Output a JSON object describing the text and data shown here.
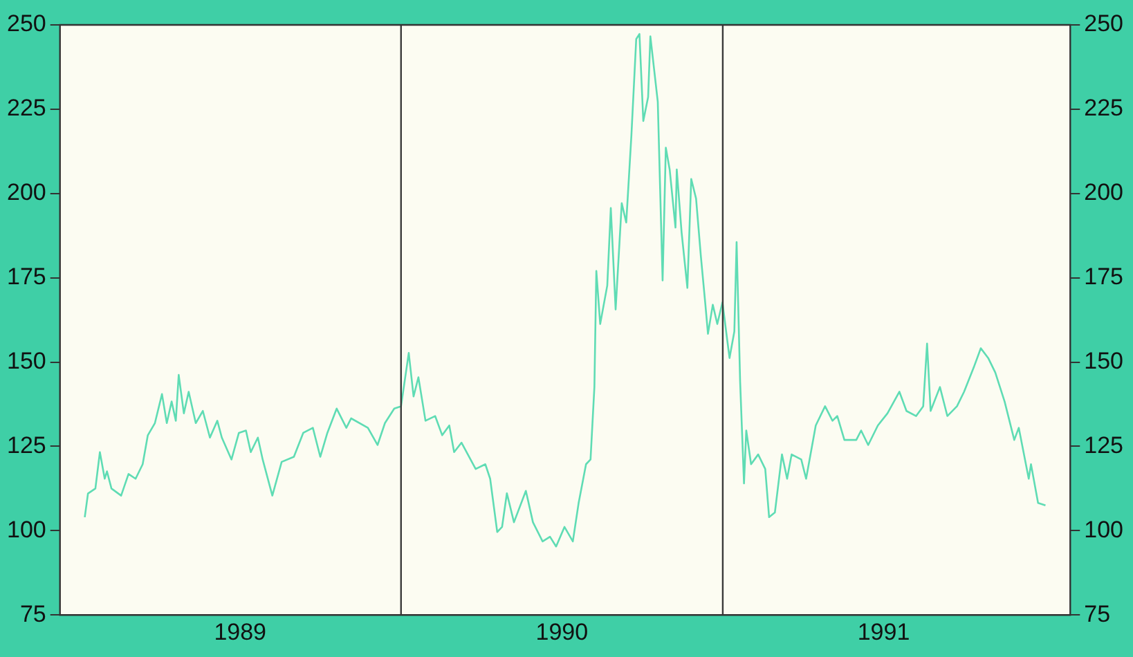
{
  "chart_data": {
    "type": "line",
    "x": [
      1989.017,
      1989.027,
      1989.05,
      1989.064,
      1989.079,
      1989.086,
      1989.1,
      1989.13,
      1989.153,
      1989.175,
      1989.197,
      1989.213,
      1989.235,
      1989.257,
      1989.272,
      1989.287,
      1989.3,
      1989.309,
      1989.325,
      1989.34,
      1989.362,
      1989.384,
      1989.406,
      1989.429,
      1989.443,
      1989.473,
      1989.496,
      1989.518,
      1989.533,
      1989.555,
      1989.57,
      1989.6,
      1989.629,
      1989.667,
      1989.696,
      1989.726,
      1989.749,
      1989.771,
      1989.8,
      1989.83,
      1989.845,
      1989.897,
      1989.927,
      1989.95,
      1989.979,
      1990.0,
      1990.024,
      1990.039,
      1990.054,
      1990.076,
      1990.106,
      1990.128,
      1990.15,
      1990.165,
      1990.188,
      1990.232,
      1990.262,
      1990.277,
      1990.299,
      1990.314,
      1990.329,
      1990.351,
      1990.388,
      1990.41,
      1990.44,
      1990.463,
      1990.482,
      1990.508,
      1990.534,
      1990.552,
      1990.575,
      1990.589,
      1990.601,
      1990.607,
      1990.619,
      1990.641,
      1990.652,
      1990.667,
      1990.686,
      1990.7,
      1990.716,
      1990.731,
      1990.741,
      1990.753,
      1990.768,
      1990.775,
      1990.798,
      1990.813,
      1990.823,
      1990.835,
      1990.853,
      1990.857,
      1990.872,
      1990.89,
      1990.902,
      1990.917,
      1990.932,
      1990.946,
      1990.954,
      1990.969,
      1990.983,
      1990.999,
      1991.021,
      1991.036,
      1991.043,
      1991.054,
      1991.066,
      1991.073,
      1991.088,
      1991.11,
      1991.132,
      1991.144,
      1991.162,
      1991.184,
      1991.2,
      1991.214,
      1991.244,
      1991.259,
      1991.289,
      1991.318,
      1991.341,
      1991.356,
      1991.378,
      1991.415,
      1991.43,
      1991.452,
      1991.482,
      1991.512,
      1991.549,
      1991.571,
      1991.601,
      1991.623,
      1991.635,
      1991.646,
      1991.675,
      1991.698,
      1991.728,
      1991.75,
      1991.78,
      1991.802,
      1991.825,
      1991.847,
      1991.876,
      1991.906,
      1991.92,
      1991.951,
      1991.958,
      1991.98,
      1992.003
    ],
    "series": [
      {
        "color": "#5fdcb4",
        "values": [
          104,
          111,
          112.5,
          123.3,
          115.4,
          117.6,
          112.5,
          110.4,
          116.8,
          115.4,
          119.7,
          128.3,
          131.9,
          140.5,
          131.9,
          138.3,
          132.6,
          146.2,
          134.8,
          141.2,
          131.9,
          135.5,
          127.6,
          132.6,
          127.6,
          121.1,
          129,
          129.7,
          123.3,
          127.6,
          121.1,
          110.4,
          120.4,
          121.9,
          129,
          130.5,
          121.9,
          129,
          136.2,
          130.5,
          133.3,
          130.5,
          125.4,
          131.9,
          136.2,
          136.9,
          152.7,
          139.8,
          145.5,
          132.6,
          134,
          128.3,
          131.2,
          123.3,
          126.1,
          118.3,
          119.7,
          115.4,
          99.6,
          101.1,
          111.1,
          102.5,
          111.8,
          102.5,
          96.8,
          98.2,
          95.3,
          101.1,
          96.8,
          108.2,
          119.7,
          121.1,
          142.6,
          177,
          161.3,
          172.7,
          195.7,
          165.6,
          197.1,
          191.4,
          217.2,
          245.8,
          247.3,
          221.5,
          228.6,
          246.6,
          227.2,
          174.2,
          213.6,
          207.1,
          189.9,
          207.1,
          188.5,
          172,
          204.3,
          198.5,
          181.3,
          167,
          158.4,
          167,
          161.3,
          167.7,
          151.2,
          159.1,
          185.6,
          144.1,
          114,
          129.7,
          119.7,
          122.6,
          118.3,
          104,
          105.4,
          122.6,
          115.4,
          122.6,
          121.1,
          115.4,
          131.2,
          136.9,
          132.6,
          134,
          126.9,
          126.9,
          129.7,
          125.4,
          131.2,
          134.8,
          141.2,
          135.5,
          134,
          136.9,
          155.5,
          135.5,
          142.6,
          134,
          136.9,
          141.2,
          148.4,
          154.1,
          151.2,
          146.9,
          138.3,
          126.9,
          130.5,
          115.4,
          119.7,
          108.2,
          107.5
        ]
      }
    ],
    "xlim": [
      1988.94,
      1992.08
    ],
    "xticks": [
      {
        "value": 1989.5,
        "label": "1989"
      },
      {
        "value": 1990.5,
        "label": "1990"
      },
      {
        "value": 1991.5,
        "label": "1991"
      }
    ],
    "ylim": [
      75,
      250
    ],
    "yticks": [
      75,
      100,
      125,
      150,
      175,
      200,
      225,
      250
    ],
    "y2lim": [
      75,
      250
    ],
    "y2ticks": [
      75,
      100,
      125,
      150,
      175,
      200,
      225,
      250
    ],
    "ref_lines": [
      {
        "axis": "x",
        "value": 1990,
        "color": "#3a3a3a"
      },
      {
        "axis": "x",
        "value": 1991,
        "color": "#3a3a3a"
      }
    ],
    "grid": false,
    "legend": false,
    "marker": "none",
    "line_style": "solid"
  }
}
